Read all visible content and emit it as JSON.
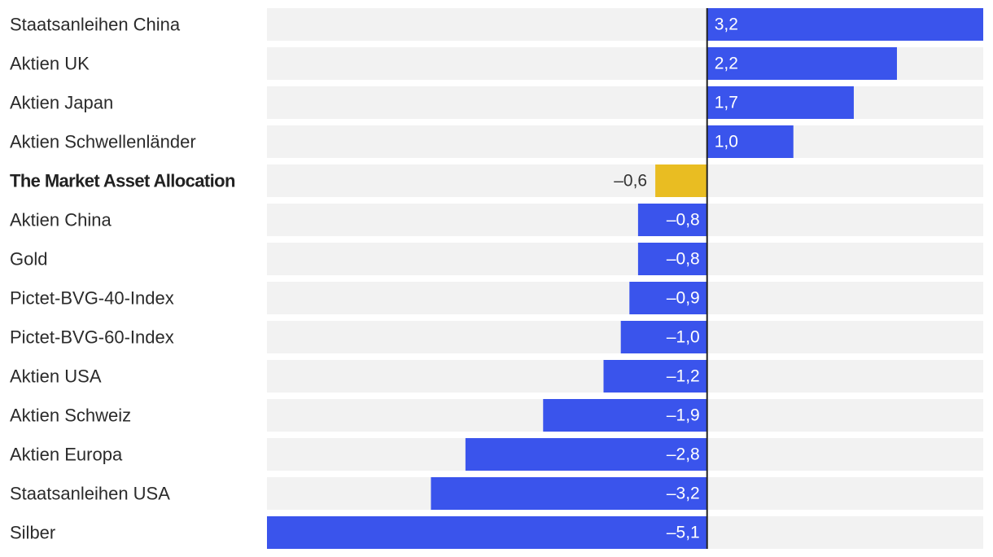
{
  "chart_data": {
    "type": "bar",
    "orientation": "horizontal",
    "title": "",
    "xlabel": "",
    "ylabel": "",
    "xlim": [
      -5.1,
      3.2
    ],
    "grid": false,
    "decimal_separator": ",",
    "minus_sign": "–",
    "categories": [
      "Staatsanleihen China",
      "Aktien UK",
      "Aktien Japan",
      "Aktien Schwellenländer",
      "The Market Asset Allocation",
      "Aktien China",
      "Gold",
      "Pictet-BVG-40-Index",
      "Pictet-BVG-60-Index",
      "Aktien USA",
      "Aktien Schweiz",
      "Aktien Europa",
      "Staatsanleihen USA",
      "Silber"
    ],
    "values": [
      3.2,
      2.2,
      1.7,
      1.0,
      -0.6,
      -0.8,
      -0.8,
      -0.9,
      -1.0,
      -1.2,
      -1.9,
      -2.8,
      -3.2,
      -5.1
    ],
    "value_labels": [
      "3,2",
      "2,2",
      "1,7",
      "1,0",
      "–0,6",
      "–0,8",
      "–0,8",
      "–0,9",
      "–1,0",
      "–1,2",
      "–1,9",
      "–2,8",
      "–3,2",
      "–5,1"
    ],
    "highlight_category": "The Market Asset Allocation",
    "colors": {
      "bar": "#3a54ec",
      "highlight": "#e9bd22",
      "track": "#f2f2f2",
      "axis": "#222222",
      "label": "#2b2b2b"
    }
  }
}
